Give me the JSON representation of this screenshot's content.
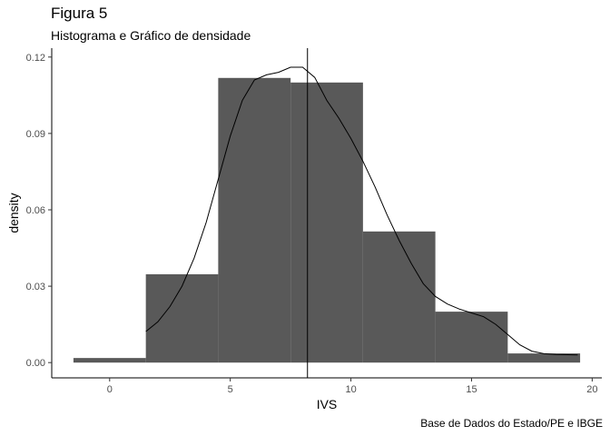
{
  "chart_data": {
    "type": "bar",
    "title": "Figura 5",
    "subtitle": "Histograma e Gráfico de densidade",
    "xlabel": "IVS",
    "ylabel": "density",
    "caption": "Base de Dados do Estado/PE e IBGE",
    "xlim": [
      -2.4,
      20.4
    ],
    "ylim": [
      -0.006,
      0.1235
    ],
    "x_ticks": [
      0,
      5,
      10,
      15,
      20
    ],
    "y_ticks": [
      0.0,
      0.03,
      0.06,
      0.09,
      0.12
    ],
    "y_tick_labels": [
      "0.00",
      "0.03",
      "0.06",
      "0.09",
      "0.12"
    ],
    "grid": false,
    "histogram": {
      "fill_color": "#595959",
      "bins": [
        {
          "x_start": -1.5,
          "x_end": 1.5,
          "density": 0.0018
        },
        {
          "x_start": 1.5,
          "x_end": 4.5,
          "density": 0.0347
        },
        {
          "x_start": 4.5,
          "x_end": 7.5,
          "density": 0.1118
        },
        {
          "x_start": 7.5,
          "x_end": 10.5,
          "density": 0.11
        },
        {
          "x_start": 10.5,
          "x_end": 13.5,
          "density": 0.0515
        },
        {
          "x_start": 13.5,
          "x_end": 16.5,
          "density": 0.02
        },
        {
          "x_start": 16.5,
          "x_end": 19.5,
          "density": 0.0036
        }
      ]
    },
    "density_curve": {
      "color": "#000000",
      "points": [
        [
          1.5,
          0.0122
        ],
        [
          2.0,
          0.016
        ],
        [
          2.5,
          0.022
        ],
        [
          3.0,
          0.03
        ],
        [
          3.5,
          0.041
        ],
        [
          4.0,
          0.055
        ],
        [
          4.5,
          0.072
        ],
        [
          5.0,
          0.089
        ],
        [
          5.5,
          0.103
        ],
        [
          6.0,
          0.111
        ],
        [
          6.5,
          0.113
        ],
        [
          7.0,
          0.114
        ],
        [
          7.5,
          0.116
        ],
        [
          8.0,
          0.116
        ],
        [
          8.5,
          0.112
        ],
        [
          9.0,
          0.103
        ],
        [
          9.5,
          0.096
        ],
        [
          10.0,
          0.088
        ],
        [
          10.5,
          0.079
        ],
        [
          11.0,
          0.069
        ],
        [
          11.5,
          0.058
        ],
        [
          12.0,
          0.048
        ],
        [
          12.5,
          0.039
        ],
        [
          13.0,
          0.031
        ],
        [
          13.5,
          0.026
        ],
        [
          14.0,
          0.023
        ],
        [
          14.5,
          0.021
        ],
        [
          15.0,
          0.0195
        ],
        [
          15.5,
          0.018
        ],
        [
          16.0,
          0.015
        ],
        [
          16.5,
          0.011
        ],
        [
          17.0,
          0.007
        ],
        [
          17.5,
          0.0045
        ],
        [
          18.0,
          0.0035
        ],
        [
          18.5,
          0.0032
        ],
        [
          19.0,
          0.0031
        ],
        [
          19.4,
          0.003
        ]
      ]
    },
    "mean_line": {
      "x": 8.2,
      "color": "#000000"
    }
  }
}
